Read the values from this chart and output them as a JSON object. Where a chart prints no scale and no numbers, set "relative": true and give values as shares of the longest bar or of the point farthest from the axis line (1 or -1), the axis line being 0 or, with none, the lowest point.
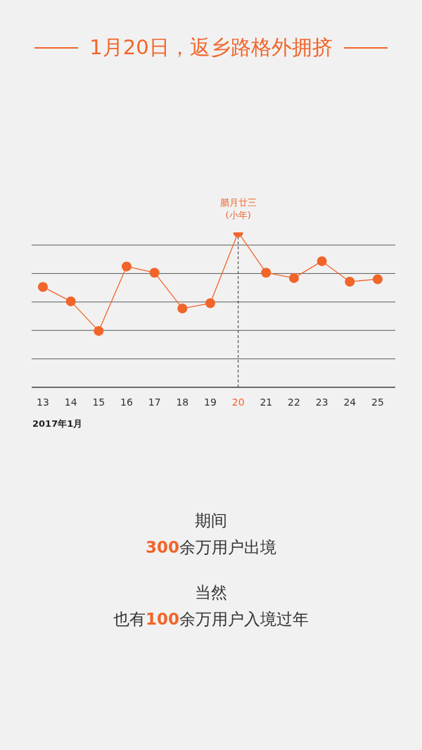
{
  "chart_data": {
    "type": "line",
    "title": "1月20日，返乡路格外拥挤",
    "xlabel": "2017年1月",
    "relative": true,
    "categories": [
      "13",
      "14",
      "15",
      "16",
      "17",
      "18",
      "19",
      "20",
      "21",
      "22",
      "23",
      "24",
      "25"
    ],
    "series": [
      {
        "color": "#f0652a",
        "values": [
          0.648,
          0.555,
          0.364,
          0.78,
          0.74,
          0.509,
          0.543,
          1,
          0.74,
          0.705,
          0.814,
          0.682,
          0.698
        ]
      }
    ],
    "ref_lines": [
      {
        "axis": "x",
        "value": "20",
        "label": "腊月廿三\n(小年)",
        "color": "#333333",
        "line_style": "dashed"
      }
    ],
    "grid": "y",
    "marker": "circle",
    "line_style": "solid",
    "annotations": [
      "期间",
      "300余万用户出境",
      "当然",
      "也有100余万用户入境过年"
    ]
  }
}
